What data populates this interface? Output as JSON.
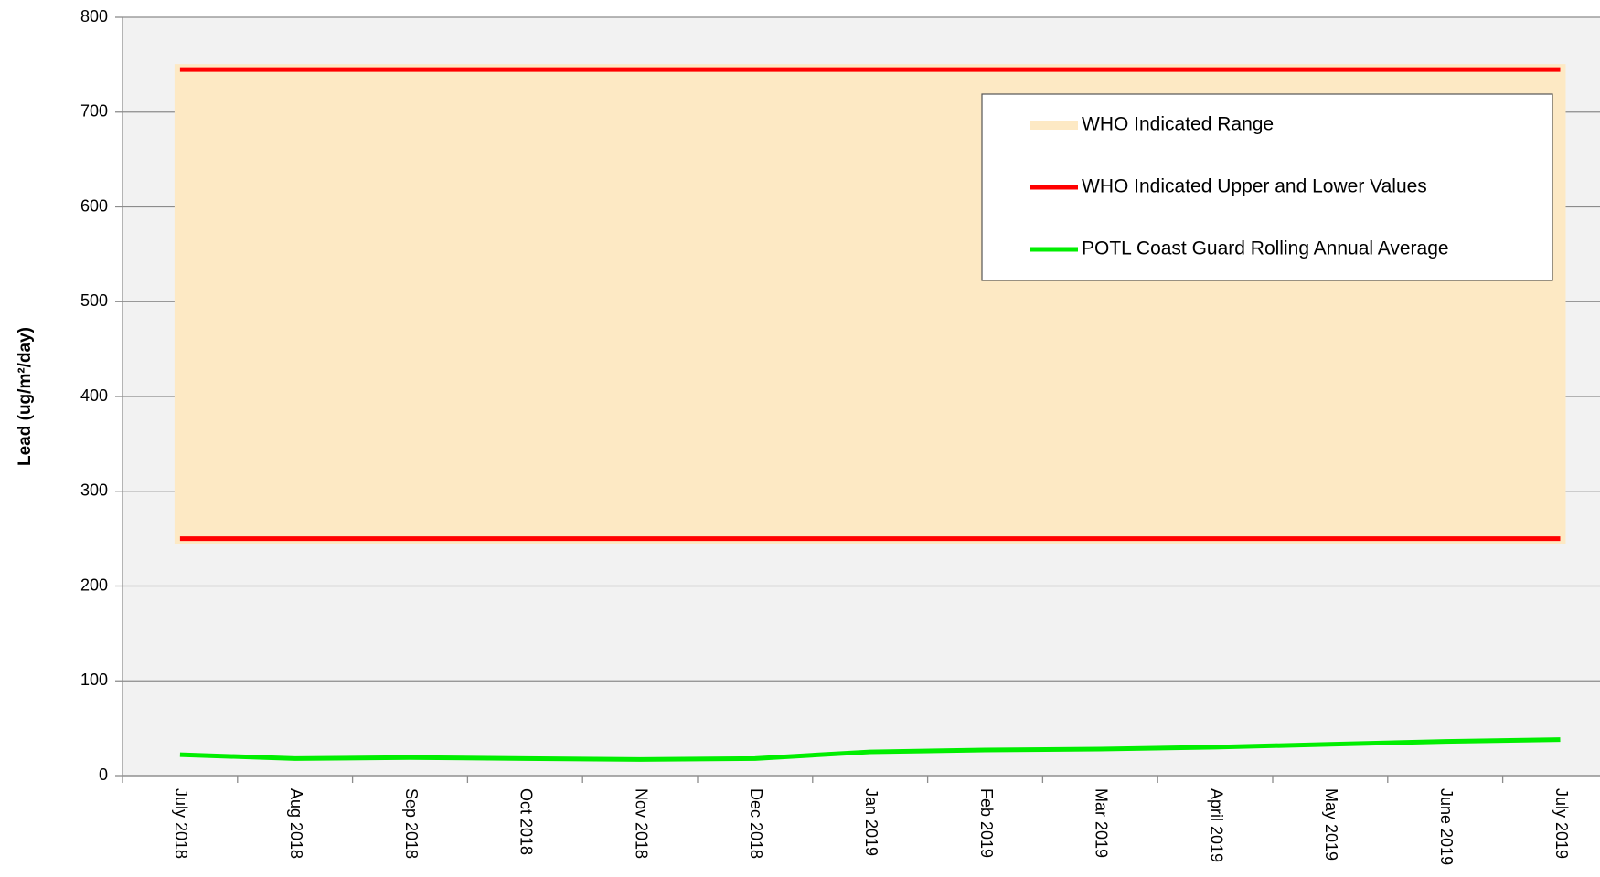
{
  "chart_data": {
    "type": "line",
    "y_label": "Lead (ug/m²/day)",
    "categories": [
      "July 2018",
      "Aug 2018",
      "Sep 2018",
      "Oct 2018",
      "Nov 2018",
      "Dec 2018",
      "Jan 2019",
      "Feb 2019",
      "Mar 2019",
      "April 2019",
      "May 2019",
      "June 2019",
      "July 2019"
    ],
    "series": [
      {
        "name": "WHO Indicated Range",
        "color": "#fde9c4"
      },
      {
        "name": "WHO Indicated Upper and Lower Values",
        "color": "#ff0000",
        "low": [
          250,
          250,
          250,
          250,
          250,
          250,
          250,
          250,
          250,
          250,
          250,
          250,
          250
        ],
        "high": [
          745,
          745,
          745,
          745,
          745,
          745,
          745,
          745,
          745,
          745,
          745,
          745,
          745
        ]
      },
      {
        "name": "POTL Coast Guard Rolling Annual Average",
        "color": "#00ee00",
        "values": [
          22,
          18,
          19,
          18,
          17,
          18,
          25,
          27,
          28,
          30,
          33,
          36,
          38
        ]
      }
    ],
    "ylim": [
      0,
      800
    ],
    "yticks": [
      0,
      100,
      200,
      300,
      400,
      500,
      600,
      700,
      800
    ],
    "grid": true,
    "legend": "upper right"
  }
}
